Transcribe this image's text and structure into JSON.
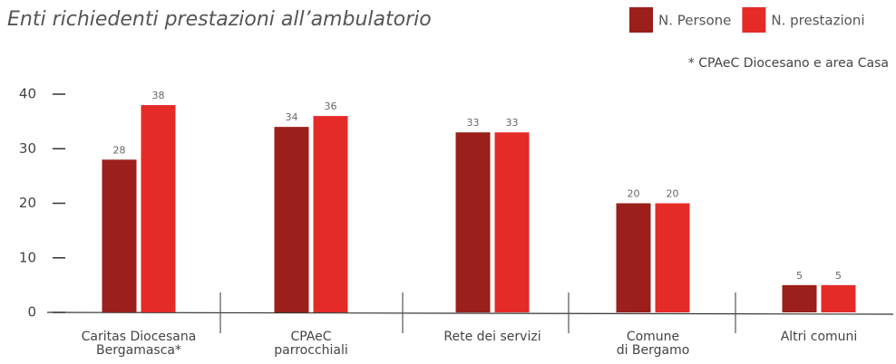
{
  "chart_data": {
    "type": "bar",
    "title": "Enti richiedenti prestazioni all’ambulatorio",
    "note": "* CPAeC Diocesano e area Casa",
    "categories": [
      "Caritas Diocesana\nBergamasca*",
      "CPAeC\nparrocchiali",
      "Rete dei servizi",
      "Comune\ndi Bergamo",
      "Altri comuni"
    ],
    "series": [
      {
        "name": "N. Persone",
        "color": "#9b1f1a",
        "values": [
          28,
          34,
          33,
          20,
          5
        ]
      },
      {
        "name": "N. prestazioni",
        "color": "#e52b28",
        "values": [
          38,
          36,
          33,
          20,
          5
        ]
      }
    ],
    "ylim": [
      0,
      40
    ],
    "yticks": [
      0,
      10,
      20,
      30,
      40
    ],
    "grid": false,
    "legend": "top-right"
  }
}
